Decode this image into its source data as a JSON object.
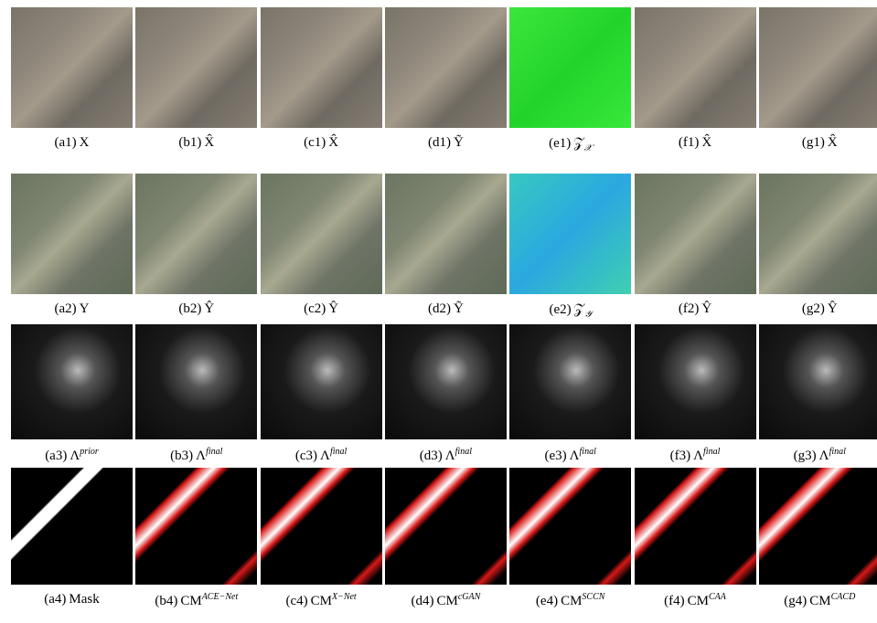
{
  "rows": [
    {
      "captions": [
        {
          "label": "(a1)",
          "symbol": "X"
        },
        {
          "label": "(b1)",
          "symbol": "X̂"
        },
        {
          "label": "(c1)",
          "symbol": "X̂"
        },
        {
          "label": "(d1)",
          "symbol": "Ỹ"
        },
        {
          "label": "(e1)",
          "symbol": "𝒵",
          "sub": "𝒳"
        },
        {
          "label": "(f1)",
          "symbol": "X̂"
        },
        {
          "label": "(g1)",
          "symbol": "X̂"
        }
      ]
    },
    {
      "captions": [
        {
          "label": "(a2)",
          "symbol": "Y"
        },
        {
          "label": "(b2)",
          "symbol": "Ŷ"
        },
        {
          "label": "(c2)",
          "symbol": "Ŷ"
        },
        {
          "label": "(d2)",
          "symbol": "Ỹ"
        },
        {
          "label": "(e2)",
          "symbol": "𝒵",
          "sub": "𝒴"
        },
        {
          "label": "(f2)",
          "symbol": "Ŷ"
        },
        {
          "label": "(g2)",
          "symbol": "Ŷ"
        }
      ]
    },
    {
      "captions": [
        {
          "label": "(a3)",
          "symbol": "Λ",
          "sup": "prior"
        },
        {
          "label": "(b3)",
          "symbol": "Λ",
          "sup": "final"
        },
        {
          "label": "(c3)",
          "symbol": "Λ",
          "sup": "final"
        },
        {
          "label": "(d3)",
          "symbol": "Λ",
          "sup": "final"
        },
        {
          "label": "(e3)",
          "symbol": "Λ",
          "sup": "final"
        },
        {
          "label": "(f3)",
          "symbol": "Λ",
          "sup": "final"
        },
        {
          "label": "(g3)",
          "symbol": "Λ",
          "sup": "final"
        }
      ]
    },
    {
      "captions": [
        {
          "label": "(a4)",
          "symbol": "Mask"
        },
        {
          "label": "(b4)",
          "symbol": "CM",
          "sup": "ACE−Net"
        },
        {
          "label": "(c4)",
          "symbol": "CM",
          "sup": "X−Net"
        },
        {
          "label": "(d4)",
          "symbol": "CM",
          "sup": "cGAN"
        },
        {
          "label": "(e4)",
          "symbol": "CM",
          "sup": "SCCN"
        },
        {
          "label": "(f4)",
          "symbol": "CM",
          "sup": "CAA"
        },
        {
          "label": "(g4)",
          "symbol": "CM",
          "sup": "CACD"
        }
      ]
    }
  ]
}
